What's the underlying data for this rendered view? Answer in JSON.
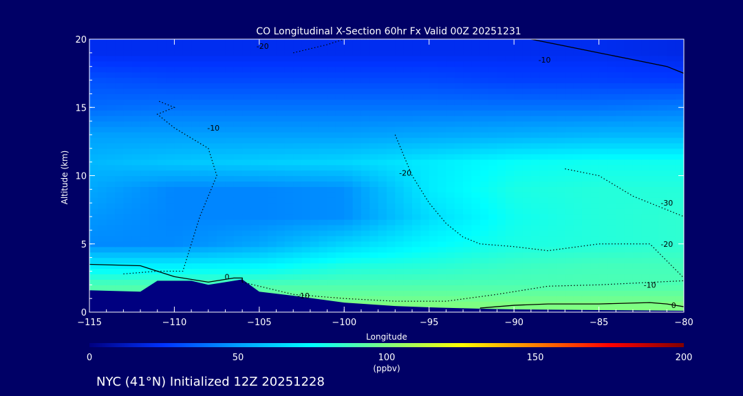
{
  "chart_data": {
    "type": "heatmap",
    "title": "CO Longitudinal X-Section 60hr  Fx Valid 00Z 20251231",
    "xlabel": "Longitude",
    "ylabel": "Altitude (km)",
    "xlim": [
      -115,
      -80
    ],
    "ylim": [
      0,
      20
    ],
    "x_ticks": [
      -115,
      -110,
      -105,
      -100,
      -95,
      -90,
      -85,
      -80
    ],
    "x_tick_labels": [
      "−115",
      "−110",
      "−105",
      "−100",
      "−95",
      "−90",
      "−85",
      "−80"
    ],
    "y_ticks": [
      0,
      5,
      10,
      15,
      20
    ],
    "y_tick_labels": [
      "0",
      "5",
      "10",
      "15",
      "20"
    ],
    "colorbar": {
      "min": 0,
      "max": 200,
      "ticks": [
        0,
        50,
        100,
        150,
        200
      ],
      "tick_labels": [
        "0",
        "50",
        "100",
        "150",
        "200"
      ],
      "unit_label": "(ppbv)",
      "colors": [
        "#000080",
        "#0033ff",
        "#00a0ff",
        "#00ffff",
        "#80ff80",
        "#ffff00",
        "#ff8000",
        "#ff0000",
        "#800000"
      ]
    },
    "co_field": {
      "lon": [
        -115,
        -110,
        -105,
        -100,
        -95,
        -90,
        -85,
        -80
      ],
      "altitude_km": [
        0.5,
        2,
        3.5,
        5,
        7,
        9,
        11,
        13,
        15,
        17,
        19
      ],
      "co_ppbv": [
        [
          95,
          98,
          100,
          100,
          100,
          100,
          100,
          100
        ],
        [
          90,
          90,
          90,
          90,
          90,
          90,
          90,
          90
        ],
        [
          70,
          70,
          72,
          80,
          82,
          86,
          88,
          88
        ],
        [
          45,
          45,
          52,
          64,
          74,
          80,
          82,
          84
        ],
        [
          48,
          44,
          44,
          46,
          66,
          78,
          82,
          84
        ],
        [
          52,
          44,
          44,
          46,
          70,
          80,
          82,
          82
        ],
        [
          56,
          60,
          62,
          64,
          70,
          76,
          78,
          78
        ],
        [
          50,
          50,
          50,
          50,
          52,
          54,
          56,
          56
        ],
        [
          38,
          40,
          40,
          40,
          40,
          40,
          40,
          42
        ],
        [
          32,
          30,
          30,
          30,
          30,
          28,
          28,
          27
        ],
        [
          22,
          22,
          22,
          22,
          22,
          22,
          22,
          20
        ]
      ]
    },
    "terrain": {
      "lon": [
        -115,
        -112,
        -111,
        -109,
        -108,
        -107,
        -106,
        -105,
        -103,
        -100,
        -97,
        -95,
        -92,
        -90,
        -85,
        -80
      ],
      "altitude_km": [
        1.6,
        1.5,
        2.3,
        2.3,
        2.0,
        2.2,
        2.4,
        1.5,
        1.2,
        0.7,
        0.45,
        0.35,
        0.25,
        0.2,
        0.15,
        0.1
      ]
    },
    "contours": [
      {
        "label": "0",
        "style": "solid",
        "lon": [
          -115,
          -112,
          -111,
          -110,
          -108,
          -106.5,
          -106,
          -106
        ],
        "altitude_km": [
          3.5,
          3.4,
          3.0,
          2.6,
          2.2,
          2.5,
          2.5,
          2.2
        ]
      },
      {
        "label": "0",
        "style": "solid",
        "lon": [
          -92,
          -90,
          -88,
          -85,
          -82,
          -81,
          -80
        ],
        "altitude_km": [
          0.3,
          0.5,
          0.6,
          0.6,
          0.7,
          0.6,
          0.4
        ]
      },
      {
        "label": "-10",
        "style": "dotted",
        "lon": [
          -106,
          -103,
          -100,
          -97,
          -94,
          -91,
          -88,
          -85,
          -80
        ],
        "altitude_km": [
          2.2,
          1.3,
          1.0,
          0.8,
          0.8,
          1.3,
          1.9,
          2.0,
          2.3
        ]
      },
      {
        "label": "-10",
        "style": "dotted",
        "lon": [
          -113,
          -111,
          -109.5,
          -109,
          -108.5,
          -107.5,
          -108,
          -110,
          -111,
          -110,
          -111
        ],
        "altitude_km": [
          2.8,
          3.0,
          3.0,
          5.0,
          7.0,
          10.0,
          12.0,
          13.5,
          14.5,
          15.0,
          15.5
        ]
      },
      {
        "label": "-20",
        "style": "dotted",
        "lon": [
          -97,
          -96,
          -95,
          -94,
          -93,
          -92,
          -90,
          -88,
          -85,
          -82,
          -80
        ],
        "altitude_km": [
          13.0,
          10.0,
          8.0,
          6.5,
          5.5,
          5.0,
          4.8,
          4.5,
          5.0,
          5.0,
          2.5
        ]
      },
      {
        "label": "-30",
        "style": "dotted",
        "lon": [
          -87,
          -85,
          -83,
          -81,
          -80
        ],
        "altitude_km": [
          10.5,
          10.0,
          8.5,
          7.5,
          7.0
        ]
      },
      {
        "label": "-30",
        "style": "dotted",
        "lon": [
          -103,
          -101,
          -100,
          -98
        ],
        "altitude_km": [
          19.0,
          19.6,
          20.0,
          20.0
        ]
      },
      {
        "label": "-10",
        "style": "solid",
        "lon": [
          -89,
          -87,
          -85,
          -83,
          -81,
          -80
        ],
        "altitude_km": [
          20.0,
          19.5,
          19.0,
          18.5,
          18.0,
          17.5
        ]
      }
    ],
    "contour_labels": [
      {
        "text": "-20",
        "lon": -104.8,
        "altitude_km": 19.5
      },
      {
        "text": "-10",
        "lon": -88.2,
        "altitude_km": 18.5
      },
      {
        "text": "-10",
        "lon": -107.7,
        "altitude_km": 13.5
      },
      {
        "text": "-20",
        "lon": -96.4,
        "altitude_km": 10.2
      },
      {
        "text": "-30",
        "lon": -81.0,
        "altitude_km": 8.0
      },
      {
        "text": "-20",
        "lon": -81.0,
        "altitude_km": 5.0
      },
      {
        "text": "-10",
        "lon": -82.0,
        "altitude_km": 2.0
      },
      {
        "text": "0",
        "lon": -106.9,
        "altitude_km": 2.6
      },
      {
        "text": "-10",
        "lon": -102.4,
        "altitude_km": 1.2
      },
      {
        "text": "0",
        "lon": -80.6,
        "altitude_km": 0.5
      }
    ]
  },
  "footer": {
    "caption": "NYC (41°N) Initialized 12Z 20251228"
  }
}
